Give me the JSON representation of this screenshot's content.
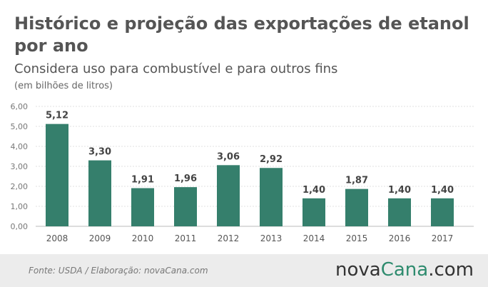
{
  "title": "Histórico e projeção das exportações de etanol por ano",
  "subtitle": "Considera uso para combustível e para outros fins",
  "unit": "(em bilhões de litros)",
  "colors": {
    "bar": "#357f6c",
    "text": "#555555",
    "grid": "#e2e2e2"
  },
  "chart_data": {
    "type": "bar",
    "categories": [
      "2008",
      "2009",
      "2010",
      "2011",
      "2012",
      "2013",
      "2014",
      "2015",
      "2016",
      "2017"
    ],
    "values": [
      5.12,
      3.3,
      1.91,
      1.96,
      3.06,
      2.92,
      1.4,
      1.87,
      1.4,
      1.4
    ],
    "value_labels": [
      "5,12",
      "3,30",
      "1,91",
      "1,96",
      "3,06",
      "2,92",
      "1,40",
      "1,87",
      "1,40",
      "1,40"
    ],
    "yticks": [
      0,
      1,
      2,
      3,
      4,
      5,
      6
    ],
    "ytick_labels": [
      "0,00",
      "1,00",
      "2,00",
      "3,00",
      "4,00",
      "5,00",
      "6,00"
    ],
    "ylim": [
      0,
      6
    ],
    "grid": true,
    "xlabel": "",
    "ylabel": ""
  },
  "footer": {
    "source": "Fonte:  USDA / Elaboração:  novaCana.com",
    "brand_prefix": "nova",
    "brand_accent": "Cana",
    "brand_suffix": ".com"
  }
}
